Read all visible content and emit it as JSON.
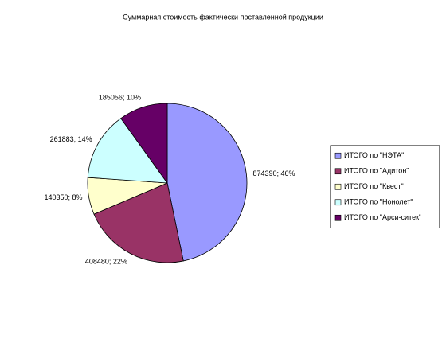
{
  "chart_data": {
    "type": "pie",
    "title": "Суммарная стоимость фактически поставленной продукции",
    "categories": [
      "ИТОГО по \"НЭТА\"",
      "ИТОГО по \"Адитон\"",
      "ИТОГО по \"Квест\"",
      "ИТОГО по \"Нонолет\"",
      "ИТОГО по \"Арси-ситек\""
    ],
    "values": [
      874390,
      408480,
      140350,
      261883,
      185056
    ],
    "value_labels": [
      "874390; 46%",
      "408480; 22%",
      "140350; 8%",
      "261883; 14%",
      "185056; 10%"
    ],
    "colors": [
      "#9999ff",
      "#993366",
      "#ffffcc",
      "#ccffff",
      "#660066"
    ],
    "legend": "right"
  }
}
